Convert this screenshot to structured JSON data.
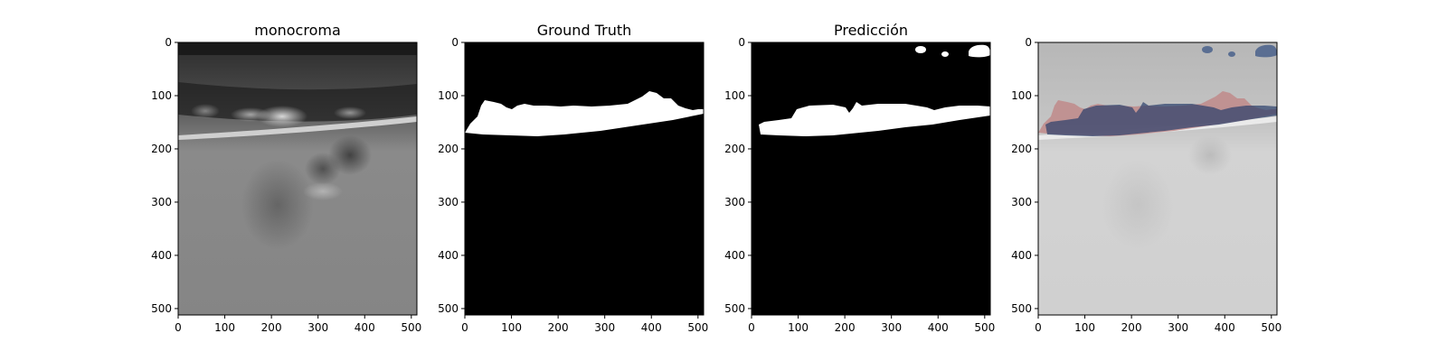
{
  "figure": {
    "panels": [
      {
        "title": "monocroma"
      },
      {
        "title": "Ground Truth"
      },
      {
        "title": "Predicción"
      },
      {
        "title": ""
      }
    ],
    "axis_range": {
      "x": [
        0,
        512
      ],
      "y": [
        0,
        512
      ]
    },
    "x_ticks": [
      "0",
      "100",
      "200",
      "300",
      "400",
      "500"
    ],
    "y_ticks": [
      "0",
      "100",
      "200",
      "300",
      "400",
      "500"
    ],
    "colors": {
      "mask": "#ffffff",
      "background": "#000000",
      "overlay_ground_truth": "#c08a8a",
      "overlay_prediction": "#2a3f6b"
    }
  }
}
